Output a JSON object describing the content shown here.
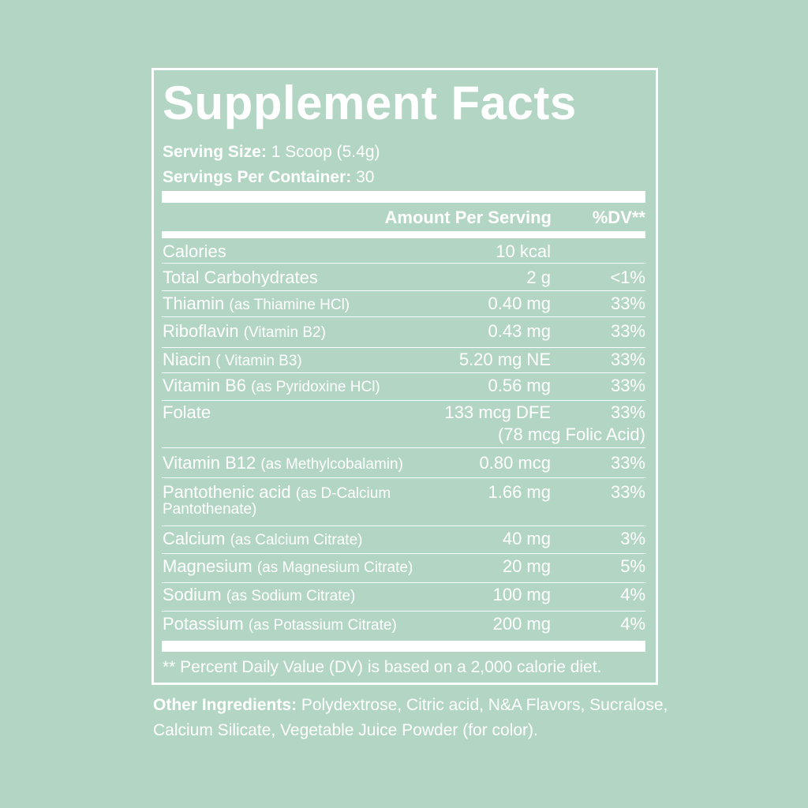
{
  "title": "Supplement Facts",
  "serving_size": {
    "label": "Serving Size:",
    "value": "1 Scoop (5.4g)"
  },
  "servings_per_container": {
    "label": "Servings Per Container:",
    "value": "30"
  },
  "header": {
    "amount": "Amount Per Serving",
    "dv": "%DV**"
  },
  "rows": [
    {
      "name": "Calories",
      "sub": "",
      "amount": "10 kcal",
      "dv": ""
    },
    {
      "name": "Total Carbohydrates",
      "sub": "",
      "amount": "2 g",
      "dv": "<1%"
    },
    {
      "name": "Thiamin",
      "sub": "(as Thiamine HCl)",
      "amount": "0.40 mg",
      "dv": "33%"
    },
    {
      "name": "Riboflavin",
      "sub": "(Vitamin B2)",
      "amount": "0.43 mg",
      "dv": "33%"
    },
    {
      "name": "Niacin",
      "sub": "( Vitamin B3)",
      "amount": "5.20 mg NE",
      "dv": "33%"
    },
    {
      "name": "Vitamin B6",
      "sub": "(as Pyridoxine HCl)",
      "amount": "0.56 mg",
      "dv": "33%"
    },
    {
      "name": "Folate",
      "sub": "",
      "amount": "133 mcg DFE",
      "dv": "33%",
      "note": "(78 mcg Folic Acid)"
    },
    {
      "name": "Vitamin B12",
      "sub": "(as Methylcobalamin)",
      "amount": "0.80 mcg",
      "dv": "33%"
    },
    {
      "name": "Pantothenic acid",
      "sub": "(as D-Calcium",
      "sub2": "Pantothenate)",
      "amount": "1.66 mg",
      "dv": "33%"
    },
    {
      "name": "Calcium",
      "sub": "(as Calcium Citrate)",
      "amount": "40 mg",
      "dv": "3%"
    },
    {
      "name": "Magnesium",
      "sub": "(as Magnesium Citrate)",
      "amount": "20 mg",
      "dv": "5%"
    },
    {
      "name": "Sodium",
      "sub": "(as Sodium Citrate)",
      "amount": "100 mg",
      "dv": "4%"
    },
    {
      "name": "Potassium",
      "sub": "(as Potassium Citrate)",
      "amount": "200 mg",
      "dv": "4%"
    }
  ],
  "footnote": "** Percent Daily Value (DV) is based on a 2,000 calorie diet.",
  "other_ingredients": {
    "label": "Other Ingredients:",
    "text": "Polydextrose, Citric acid, N&A Flavors, Sucralose, Calcium Silicate, Vegetable Juice Powder (for color)."
  },
  "colors": {
    "background": "#b3d6c4",
    "foreground": "#ffffff"
  }
}
